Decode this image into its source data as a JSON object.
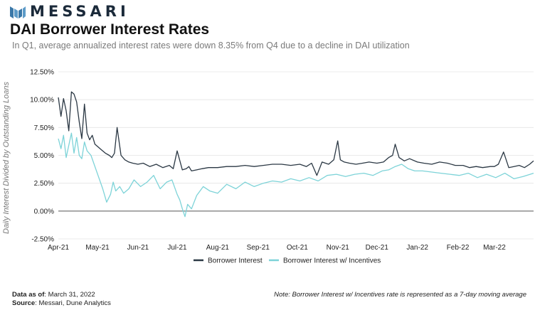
{
  "brand": {
    "name": "MESSARI"
  },
  "header": {
    "title": "DAI Borrower Interest Rates",
    "subtitle": "In Q1, average annualized interest rates were down 8.35% from Q4 due to a decline in DAI utilization"
  },
  "chart_data": {
    "type": "line",
    "title": "DAI Borrower Interest Rates",
    "xlabel": "",
    "ylabel": "Daily Interest Divided by Outstanding Loans",
    "ylim": [
      -2.5,
      12.5
    ],
    "yticks": [
      "12.50%",
      "10.00%",
      "7.50%",
      "5.00%",
      "2.50%",
      "0.00%",
      "-2.50%"
    ],
    "ytick_values": [
      12.5,
      10,
      7.5,
      5,
      2.5,
      0,
      -2.5
    ],
    "x_tick_labels": [
      "Apr-21",
      "May-21",
      "Jun-21",
      "Jul-21",
      "Aug-21",
      "Sep-21",
      "Oct-21",
      "Nov-21",
      "Dec-21",
      "Jan-22",
      "Feb-22",
      "Mar-22"
    ],
    "x_tick_months": [
      "2021-04",
      "2021-05",
      "2021-06",
      "2021-07",
      "2021-08",
      "2021-09",
      "2021-10",
      "2021-11",
      "2021-12",
      "2022-01",
      "2022-02",
      "2022-03"
    ],
    "x_range": [
      "2021-04-01",
      "2022-03-31"
    ],
    "grid": true,
    "legend_position": "bottom-center",
    "series": [
      {
        "name": "Borrower Interest",
        "color": "#2b3844",
        "x": [
          "2021-04-01",
          "2021-04-03",
          "2021-04-05",
          "2021-04-07",
          "2021-04-09",
          "2021-04-11",
          "2021-04-13",
          "2021-04-15",
          "2021-04-17",
          "2021-04-19",
          "2021-04-21",
          "2021-04-23",
          "2021-04-25",
          "2021-04-27",
          "2021-04-29",
          "2021-05-01",
          "2021-05-04",
          "2021-05-07",
          "2021-05-10",
          "2021-05-12",
          "2021-05-14",
          "2021-05-16",
          "2021-05-19",
          "2021-05-22",
          "2021-05-25",
          "2021-05-28",
          "2021-06-01",
          "2021-06-05",
          "2021-06-10",
          "2021-06-15",
          "2021-06-20",
          "2021-06-25",
          "2021-06-28",
          "2021-07-01",
          "2021-07-05",
          "2021-07-08",
          "2021-07-10",
          "2021-07-12",
          "2021-07-16",
          "2021-07-20",
          "2021-07-25",
          "2021-08-01",
          "2021-08-08",
          "2021-08-15",
          "2021-08-22",
          "2021-08-29",
          "2021-09-05",
          "2021-09-12",
          "2021-09-19",
          "2021-09-26",
          "2021-10-03",
          "2021-10-08",
          "2021-10-12",
          "2021-10-16",
          "2021-10-20",
          "2021-10-25",
          "2021-10-29",
          "2021-11-01",
          "2021-11-03",
          "2021-11-06",
          "2021-11-10",
          "2021-11-15",
          "2021-11-20",
          "2021-11-25",
          "2021-12-01",
          "2021-12-06",
          "2021-12-10",
          "2021-12-13",
          "2021-12-15",
          "2021-12-18",
          "2021-12-22",
          "2021-12-26",
          "2022-01-01",
          "2022-01-06",
          "2022-01-12",
          "2022-01-18",
          "2022-01-24",
          "2022-01-30",
          "2022-02-05",
          "2022-02-10",
          "2022-02-15",
          "2022-02-20",
          "2022-02-26",
          "2022-03-01",
          "2022-03-04",
          "2022-03-08",
          "2022-03-12",
          "2022-03-16",
          "2022-03-20",
          "2022-03-24",
          "2022-03-28",
          "2022-03-31"
        ],
        "values": [
          10.2,
          8.5,
          10.1,
          9.0,
          7.2,
          10.7,
          10.5,
          9.8,
          8.0,
          6.5,
          9.6,
          7.0,
          6.4,
          6.8,
          6.0,
          5.8,
          5.5,
          5.2,
          5.0,
          4.8,
          5.2,
          7.5,
          5.0,
          4.6,
          4.4,
          4.3,
          4.2,
          4.3,
          4.0,
          4.2,
          3.9,
          4.1,
          3.8,
          5.4,
          3.7,
          3.8,
          4.0,
          3.6,
          3.7,
          3.8,
          3.9,
          3.9,
          4.0,
          4.0,
          4.1,
          4.0,
          4.1,
          4.2,
          4.2,
          4.1,
          4.2,
          4.0,
          4.3,
          3.2,
          4.4,
          4.2,
          4.6,
          6.3,
          4.6,
          4.4,
          4.3,
          4.2,
          4.3,
          4.4,
          4.3,
          4.4,
          4.8,
          5.0,
          6.0,
          4.8,
          4.5,
          4.7,
          4.4,
          4.3,
          4.2,
          4.4,
          4.3,
          4.1,
          4.1,
          3.9,
          4.0,
          3.9,
          4.0,
          4.0,
          4.2,
          5.3,
          3.9,
          4.0,
          4.1,
          3.9,
          4.2,
          4.5
        ]
      },
      {
        "name": "Borrower Interest w/ Incentives",
        "color": "#7dd3d8",
        "x": [
          "2021-04-01",
          "2021-04-03",
          "2021-04-05",
          "2021-04-07",
          "2021-04-09",
          "2021-04-11",
          "2021-04-13",
          "2021-04-15",
          "2021-04-17",
          "2021-04-19",
          "2021-04-21",
          "2021-04-23",
          "2021-04-26",
          "2021-04-29",
          "2021-05-02",
          "2021-05-05",
          "2021-05-08",
          "2021-05-11",
          "2021-05-13",
          "2021-05-15",
          "2021-05-18",
          "2021-05-21",
          "2021-05-25",
          "2021-05-29",
          "2021-06-03",
          "2021-06-08",
          "2021-06-13",
          "2021-06-18",
          "2021-06-23",
          "2021-06-27",
          "2021-07-01",
          "2021-07-03",
          "2021-07-05",
          "2021-07-07",
          "2021-07-09",
          "2021-07-12",
          "2021-07-16",
          "2021-07-21",
          "2021-07-26",
          "2021-08-01",
          "2021-08-08",
          "2021-08-15",
          "2021-08-22",
          "2021-08-29",
          "2021-09-05",
          "2021-09-12",
          "2021-09-19",
          "2021-09-26",
          "2021-10-03",
          "2021-10-10",
          "2021-10-17",
          "2021-10-24",
          "2021-10-31",
          "2021-11-07",
          "2021-11-14",
          "2021-11-21",
          "2021-11-28",
          "2021-12-05",
          "2021-12-10",
          "2021-12-15",
          "2021-12-20",
          "2021-12-25",
          "2021-12-30",
          "2022-01-05",
          "2022-01-12",
          "2022-01-19",
          "2022-01-26",
          "2022-02-02",
          "2022-02-09",
          "2022-02-16",
          "2022-02-23",
          "2022-03-02",
          "2022-03-09",
          "2022-03-16",
          "2022-03-23",
          "2022-03-31"
        ],
        "values": [
          6.5,
          5.6,
          6.8,
          4.8,
          5.9,
          7.0,
          5.2,
          6.6,
          5.0,
          4.7,
          6.2,
          5.4,
          5.0,
          4.0,
          3.0,
          2.0,
          0.8,
          1.5,
          2.6,
          1.8,
          2.2,
          1.6,
          2.0,
          2.8,
          2.2,
          2.6,
          3.2,
          2.0,
          2.6,
          2.8,
          1.5,
          1.0,
          0.2,
          -0.5,
          0.6,
          0.2,
          1.4,
          2.2,
          1.8,
          1.6,
          2.4,
          2.0,
          2.6,
          2.2,
          2.5,
          2.7,
          2.6,
          2.9,
          2.7,
          3.0,
          2.7,
          3.2,
          3.3,
          3.1,
          3.3,
          3.4,
          3.2,
          3.6,
          3.7,
          4.0,
          4.2,
          3.8,
          3.6,
          3.6,
          3.5,
          3.4,
          3.3,
          3.2,
          3.4,
          3.0,
          3.3,
          3.0,
          3.4,
          2.9,
          3.1,
          3.4
        ]
      }
    ]
  },
  "footer": {
    "data_as_of_label": "Data as of",
    "data_as_of_value": ": March 31, 2022",
    "source_label": "Source",
    "source_value": ": Messari, Dune Analytics",
    "note": "Note: Borrower Interest w/ Incentives rate is represented as a 7-day moving average"
  }
}
